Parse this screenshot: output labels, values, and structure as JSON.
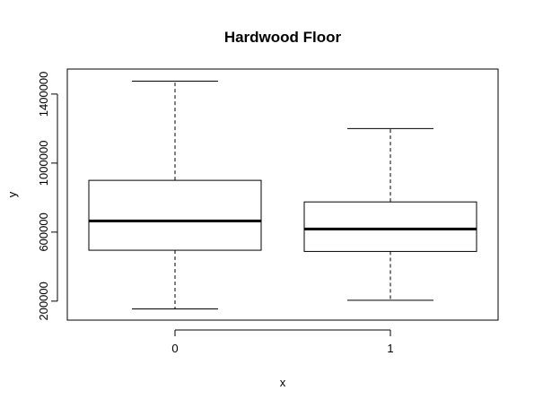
{
  "chart_data": {
    "type": "box",
    "title": "Hardwood Floor",
    "xlabel": "x",
    "ylabel": "y",
    "categories": [
      "0",
      "1"
    ],
    "boxes": [
      {
        "category": "0",
        "whisker_low": 155000,
        "q1": 495000,
        "median": 665000,
        "q3": 900000,
        "whisker_high": 1475000
      },
      {
        "category": "1",
        "whisker_low": 205000,
        "q1": 488000,
        "median": 618000,
        "q3": 775000,
        "whisker_high": 1200000
      }
    ],
    "y_ticks": [
      "200000",
      "600000",
      "1000000",
      "1400000"
    ],
    "y_tick_values": [
      200000,
      600000,
      1000000,
      1400000
    ],
    "ylim": [
      90000,
      1545000
    ],
    "grid": false,
    "legend": "none"
  }
}
